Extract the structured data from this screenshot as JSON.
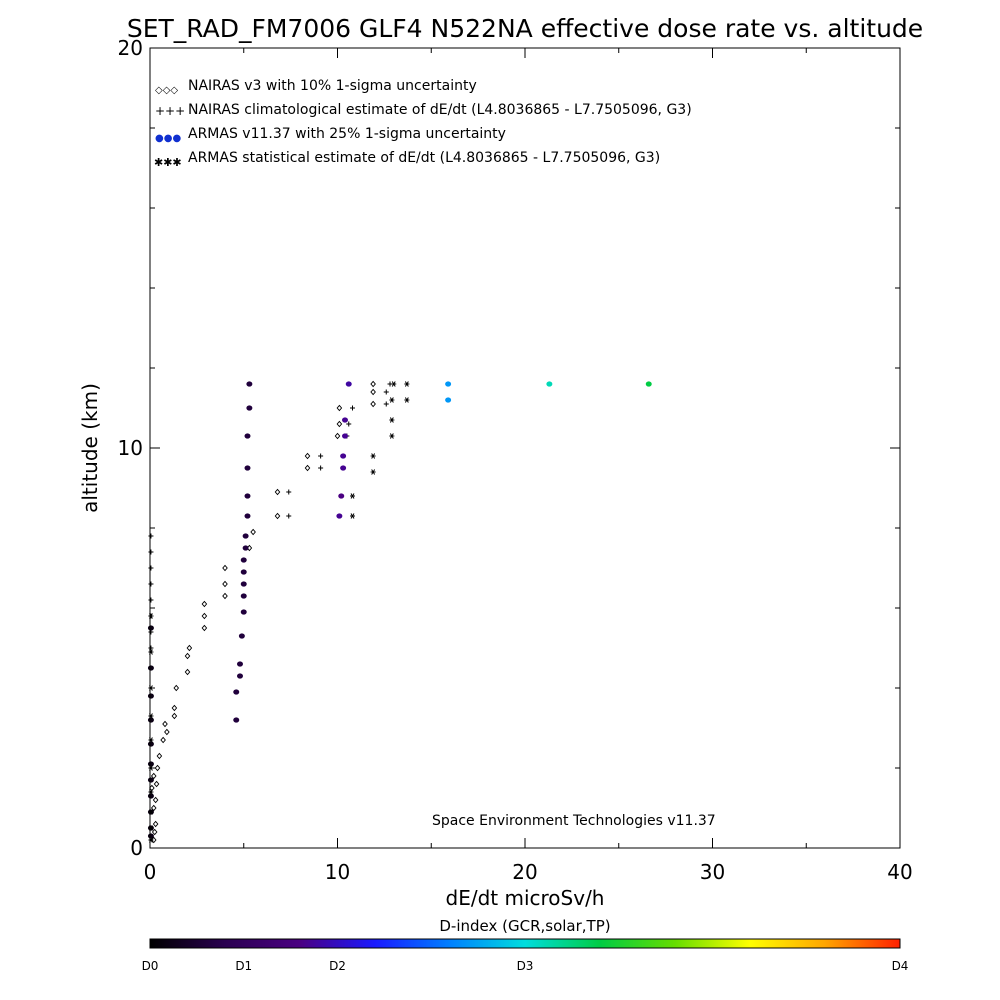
{
  "chart_data": {
    "type": "scatter",
    "title": "SET_RAD_FM7006  GLF4 N522NA effective dose rate vs. altitude",
    "xlabel": "dE/dt microSv/h",
    "ylabel": "altitude (km)",
    "xlim": [
      0,
      40
    ],
    "ylim": [
      0,
      20
    ],
    "xticks": [
      "0",
      "10",
      "20",
      "30",
      "40"
    ],
    "yticks": [
      "0",
      "10",
      "20"
    ],
    "annotation": "Space Environment Technologies v11.37",
    "legend_position": "top-left",
    "legend": [
      {
        "symbol": "◇◇◇",
        "label": "NAIRAS v3 with 10% 1-sigma uncertainty",
        "color": "#000000"
      },
      {
        "symbol": "+++",
        "label": "NAIRAS climatological estimate of dE/dt (L4.8036865 - L7.7505096, G3)",
        "color": "#000000"
      },
      {
        "symbol": "●●●",
        "label": "ARMAS v11.37 with 25% 1-sigma uncertainty",
        "color": "#1030d0"
      },
      {
        "symbol": "✱✱✱",
        "label": "ARMAS statistical estimate of dE/dt (L4.8036865 - L7.7505096, G3)",
        "color": "#000000"
      }
    ],
    "colorbar": {
      "title": "D-index (GCR,solar,TP)",
      "labels": [
        {
          "text": "D0",
          "pos": 0.0
        },
        {
          "text": "D1",
          "pos": 0.125
        },
        {
          "text": "D2",
          "pos": 0.25
        },
        {
          "text": "D3",
          "pos": 0.5
        },
        {
          "text": "D4",
          "pos": 1.0
        }
      ],
      "stops": [
        "#000000",
        "#2a0050",
        "#4b0082",
        "#1a1aff",
        "#0080ff",
        "#00dddd",
        "#00cc44",
        "#66dd00",
        "#ffff00",
        "#ffa500",
        "#ff2000"
      ]
    },
    "series": [
      {
        "name": "NAIRAS v3",
        "marker": "diamond",
        "color": "#000000",
        "points": [
          [
            0.2,
            0.2
          ],
          [
            0.25,
            0.4
          ],
          [
            0.3,
            0.6
          ],
          [
            0.2,
            1.0
          ],
          [
            0.3,
            1.2
          ],
          [
            0.1,
            1.5
          ],
          [
            0.2,
            1.8
          ],
          [
            0.35,
            1.6
          ],
          [
            0.4,
            2.0
          ],
          [
            0.5,
            2.3
          ],
          [
            0.7,
            2.7
          ],
          [
            0.8,
            3.1
          ],
          [
            0.9,
            2.9
          ],
          [
            1.3,
            3.3
          ],
          [
            1.3,
            3.5
          ],
          [
            1.4,
            4.0
          ],
          [
            2.0,
            4.4
          ],
          [
            2.0,
            4.8
          ],
          [
            2.1,
            5.0
          ],
          [
            2.9,
            5.5
          ],
          [
            2.9,
            5.8
          ],
          [
            2.9,
            6.1
          ],
          [
            4.0,
            6.3
          ],
          [
            4.0,
            6.6
          ],
          [
            4.0,
            7.0
          ],
          [
            5.3,
            7.5
          ],
          [
            5.5,
            7.9
          ],
          [
            6.8,
            8.3
          ],
          [
            6.8,
            8.9
          ],
          [
            8.4,
            9.5
          ],
          [
            8.4,
            9.8
          ],
          [
            10.0,
            10.3
          ],
          [
            10.1,
            10.6
          ],
          [
            10.1,
            11.0
          ],
          [
            11.9,
            11.1
          ],
          [
            11.9,
            11.4
          ],
          [
            11.9,
            11.6
          ]
        ]
      },
      {
        "name": "NAIRAS climatological",
        "marker": "plus",
        "color": "#000000",
        "points": [
          [
            0.05,
            7.8
          ],
          [
            0.05,
            7.4
          ],
          [
            0.05,
            7.0
          ],
          [
            0.05,
            6.6
          ],
          [
            0.05,
            6.2
          ],
          [
            0.05,
            5.8
          ],
          [
            0.05,
            5.4
          ],
          [
            0.05,
            5.0
          ],
          [
            7.4,
            8.3
          ],
          [
            7.4,
            8.9
          ],
          [
            9.1,
            9.5
          ],
          [
            9.1,
            9.8
          ],
          [
            10.5,
            10.3
          ],
          [
            10.6,
            10.6
          ],
          [
            10.8,
            11.0
          ],
          [
            12.6,
            11.1
          ],
          [
            12.6,
            11.4
          ],
          [
            12.8,
            11.6
          ]
        ]
      },
      {
        "name": "ARMAS v11.37",
        "marker": "dot",
        "points": [
          [
            0.05,
            0.3
          ],
          [
            0.05,
            0.5
          ],
          [
            0.05,
            0.9
          ],
          [
            0.05,
            1.3
          ],
          [
            0.05,
            1.7
          ],
          [
            0.05,
            2.1
          ],
          [
            0.05,
            2.6
          ],
          [
            0.05,
            3.2
          ],
          [
            0.05,
            3.8
          ],
          [
            0.05,
            4.5
          ],
          [
            0.05,
            5.5
          ],
          [
            4.6,
            3.2
          ],
          [
            4.6,
            3.9
          ],
          [
            4.8,
            4.3
          ],
          [
            4.8,
            4.6
          ],
          [
            4.9,
            5.3
          ],
          [
            5.0,
            5.9
          ],
          [
            5.0,
            6.3
          ],
          [
            5.0,
            6.6
          ],
          [
            5.0,
            6.9
          ],
          [
            5.0,
            7.2
          ],
          [
            5.1,
            7.5
          ],
          [
            5.1,
            7.8
          ],
          [
            5.2,
            8.3
          ],
          [
            5.2,
            8.8
          ],
          [
            5.2,
            9.5
          ],
          [
            5.2,
            10.3
          ],
          [
            5.3,
            11.0
          ],
          [
            5.3,
            11.6
          ],
          [
            10.1,
            8.3
          ],
          [
            10.2,
            8.8
          ],
          [
            10.3,
            9.5
          ],
          [
            10.3,
            9.8
          ],
          [
            10.4,
            10.3
          ],
          [
            10.4,
            10.7
          ],
          [
            10.6,
            11.6
          ],
          [
            15.9,
            11.2
          ],
          [
            15.9,
            11.6
          ],
          [
            21.3,
            11.6
          ],
          [
            26.6,
            11.6
          ]
        ],
        "d_index": [
          0.1,
          0.1,
          0.1,
          0.1,
          0.1,
          0.1,
          0.1,
          0.1,
          0.1,
          0.1,
          0.1,
          0.3,
          0.3,
          0.3,
          0.3,
          0.3,
          0.3,
          0.3,
          0.3,
          0.3,
          0.3,
          0.3,
          0.3,
          0.3,
          0.3,
          0.3,
          0.3,
          0.3,
          0.3,
          0.85,
          0.8,
          0.85,
          0.85,
          0.85,
          0.85,
          0.9,
          1.7,
          1.7,
          2.1,
          2.4
        ]
      },
      {
        "name": "ARMAS statistical",
        "marker": "asterisk",
        "color": "#000000",
        "points": [
          [
            0.05,
            0.2
          ],
          [
            0.05,
            0.5
          ],
          [
            0.05,
            0.9
          ],
          [
            0.05,
            1.4
          ],
          [
            0.05,
            2.0
          ],
          [
            0.05,
            2.7
          ],
          [
            0.05,
            3.3
          ],
          [
            0.05,
            4.0
          ],
          [
            0.05,
            4.9
          ],
          [
            0.05,
            5.8
          ],
          [
            10.8,
            8.3
          ],
          [
            10.8,
            8.8
          ],
          [
            11.9,
            9.4
          ],
          [
            11.9,
            9.8
          ],
          [
            12.9,
            10.3
          ],
          [
            12.9,
            10.7
          ],
          [
            12.9,
            11.2
          ],
          [
            13.7,
            11.2
          ],
          [
            13.7,
            11.6
          ],
          [
            13.0,
            11.6
          ]
        ]
      }
    ]
  }
}
